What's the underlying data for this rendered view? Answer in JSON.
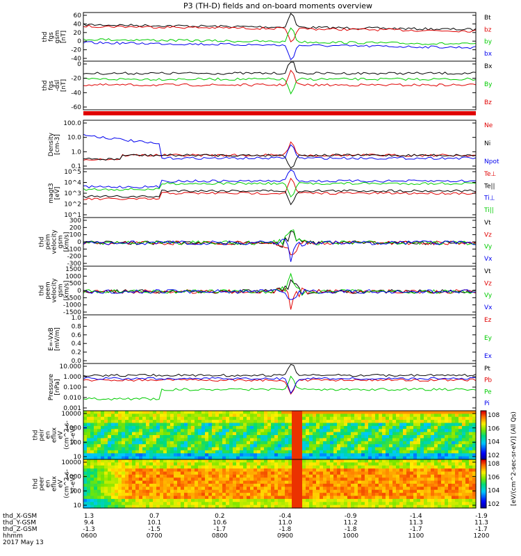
{
  "title": "P3 (TH-D) fields and on-board moments overview",
  "date_label": "2017 May 13",
  "colors": {
    "black": "#000000",
    "red": "#e00000",
    "green": "#00cc00",
    "blue": "#0000ee"
  },
  "colorbar_unit": "[eV/(cm^2-sec-sr-eV)] (All Qs)",
  "chart_data": [
    {
      "type": "line",
      "ylabel": [
        "thd",
        "fgs",
        "gsm",
        "[nT]"
      ],
      "yticks": [
        "60",
        "40",
        "20",
        "0",
        "-20",
        "-40"
      ],
      "ylim": [
        -40,
        60
      ],
      "legend": [
        {
          "label": "Bt",
          "color": "#000000"
        },
        {
          "label": "bz",
          "color": "#e00000"
        },
        {
          "label": "by",
          "color": "#00cc00"
        },
        {
          "label": "bx",
          "color": "#0000ee"
        }
      ]
    },
    {
      "type": "line",
      "ylabel": [
        "thd",
        "fgs",
        "-dsl",
        "[nT]"
      ],
      "yticks": [
        "0",
        "-20",
        "-40",
        "-60"
      ],
      "ylim": [
        -70,
        8
      ],
      "legend": [
        {
          "label": "Bx",
          "color": "#000000"
        },
        {
          "label": "By",
          "color": "#00cc00"
        },
        {
          "label": "Bz",
          "color": "#e00000"
        }
      ]
    },
    {
      "type": "bar",
      "ylabel": [],
      "yticks": [],
      "legend": []
    },
    {
      "type": "line",
      "ylabel": [
        "Density",
        "[cm-3]"
      ],
      "yticks": [
        "100.0",
        "10.0",
        "1.0",
        "0.1"
      ],
      "ylim": [
        0.1,
        100
      ],
      "legend": [
        {
          "label": "Ne",
          "color": "#e00000"
        },
        {
          "label": "Ni",
          "color": "#000000"
        },
        {
          "label": "Npot",
          "color": "#0000ee"
        }
      ]
    },
    {
      "type": "line",
      "ylabel": [
        "magt3",
        "[eV]"
      ],
      "yticks": [
        "10^5",
        "10^4",
        "10^3",
        "10^2",
        "10^1"
      ],
      "ylim": [
        10,
        100000
      ],
      "legend": [
        {
          "label": "Te⊥",
          "color": "#e00000"
        },
        {
          "label": "Te||",
          "color": "#000000"
        },
        {
          "label": "Ti⊥",
          "color": "#0000ee"
        },
        {
          "label": "Ti||",
          "color": "#00cc00"
        }
      ]
    },
    {
      "type": "line",
      "ylabel": [
        "thd",
        "peim",
        "velocity",
        "gsm",
        "[km/s]"
      ],
      "yticks": [
        "300",
        "200",
        "100",
        "0",
        "-100",
        "-200",
        "-300"
      ],
      "ylim": [
        -300,
        300
      ],
      "legend": [
        {
          "label": "Vt",
          "color": "#000000"
        },
        {
          "label": "Vz",
          "color": "#e00000"
        },
        {
          "label": "Vy",
          "color": "#00cc00"
        },
        {
          "label": "Vx",
          "color": "#0000ee"
        }
      ]
    },
    {
      "type": "line",
      "ylabel": [
        "thd",
        "peem",
        "velocity",
        "gsm",
        "[km/s]"
      ],
      "yticks": [
        "1500",
        "1000",
        "500",
        "0",
        "-500",
        "-1000",
        "-1500"
      ],
      "ylim": [
        -1500,
        1500
      ],
      "legend": [
        {
          "label": "Vt",
          "color": "#000000"
        },
        {
          "label": "Vz",
          "color": "#e00000"
        },
        {
          "label": "Vy",
          "color": "#00cc00"
        },
        {
          "label": "Vx",
          "color": "#0000ee"
        }
      ]
    },
    {
      "type": "line",
      "ylabel": [
        "E=-VxB",
        "[mV/m]"
      ],
      "yticks": [
        "1.0",
        "0.8",
        "0.6",
        "0.4",
        "0.2",
        "0.0"
      ],
      "ylim": [
        0,
        1
      ],
      "legend": [
        {
          "label": "Ez",
          "color": "#e00000"
        },
        {
          "label": "Ey",
          "color": "#00cc00"
        },
        {
          "label": "Ex",
          "color": "#0000ee"
        }
      ]
    },
    {
      "type": "line",
      "ylabel": [
        "Pressure",
        "[nPa]"
      ],
      "yticks": [
        "10.000",
        "1.000",
        "0.100",
        "0.010",
        "0.001"
      ],
      "ylim": [
        0.001,
        10
      ],
      "legend": [
        {
          "label": "Pt",
          "color": "#000000"
        },
        {
          "label": "Pb",
          "color": "#e00000"
        },
        {
          "label": "Pe",
          "color": "#00cc00"
        },
        {
          "label": "Pi",
          "color": "#0000ee"
        }
      ]
    },
    {
      "type": "heatmap",
      "ylabel": [
        "thd",
        "peir",
        "en",
        "eflux",
        "eV",
        "(cm^2-s-",
        "sr-eV)"
      ],
      "yticks": [
        "10000",
        "1000",
        "100",
        "10"
      ],
      "ylim": [
        5,
        20000
      ],
      "colorbar_ticks": [
        "10^8",
        "10^6",
        "10^4",
        "10^2"
      ]
    },
    {
      "type": "heatmap",
      "ylabel": [
        "thd",
        "peer",
        "en",
        "eflux",
        "eV",
        "(cm^2-s-",
        "sr-eV)"
      ],
      "yticks": [
        "10000",
        "1000",
        "100",
        "10"
      ],
      "ylim": [
        5,
        20000
      ],
      "colorbar_ticks": [
        "10^8",
        "10^6",
        "10^4",
        "10^2"
      ]
    }
  ],
  "xaxis": {
    "row_labels": [
      "thd_X-GSM",
      "thd_Y-GSM",
      "thd_Z-GSM",
      "hhmm"
    ],
    "ticks": [
      {
        "x": [
          "1.3",
          "9.4",
          "-1.3",
          "0600"
        ]
      },
      {
        "x": [
          "0.7",
          "10.1",
          "-1.5",
          "0700"
        ]
      },
      {
        "x": [
          "0.2",
          "10.6",
          "-1.7",
          "0800"
        ]
      },
      {
        "x": [
          "-0.4",
          "11.0",
          "-1.8",
          "0900"
        ]
      },
      {
        "x": [
          "-0.9",
          "11.2",
          "-1.8",
          "1000"
        ]
      },
      {
        "x": [
          "-1.4",
          "11.3",
          "-1.7",
          "1100"
        ]
      },
      {
        "x": [
          "-1.9",
          "11.3",
          "-1.7",
          "1200"
        ]
      }
    ],
    "time_range": [
      "0600",
      "1200"
    ]
  }
}
